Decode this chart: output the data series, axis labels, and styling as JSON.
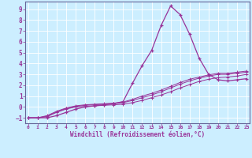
{
  "xlabel": "Windchill (Refroidissement éolien,°C)",
  "background_color": "#cceeff",
  "line_color": "#993399",
  "spine_color": "#666699",
  "x_ticks": [
    0,
    1,
    2,
    3,
    4,
    5,
    6,
    7,
    8,
    9,
    10,
    11,
    12,
    13,
    14,
    15,
    16,
    17,
    18,
    19,
    20,
    21,
    22,
    23
  ],
  "y_ticks": [
    -1,
    0,
    1,
    2,
    3,
    4,
    5,
    6,
    7,
    8,
    9
  ],
  "ylim": [
    -1.5,
    9.7
  ],
  "xlim": [
    -0.3,
    23.3
  ],
  "series1_x": [
    0,
    1,
    2,
    3,
    4,
    5,
    6,
    7,
    8,
    9,
    10,
    11,
    12,
    13,
    14,
    15,
    16,
    17,
    18,
    19,
    20,
    21,
    22,
    23
  ],
  "series1_y": [
    -1,
    -1,
    -1,
    -0.8,
    -0.5,
    -0.2,
    0,
    0.1,
    0.2,
    0.3,
    0.5,
    2.2,
    3.8,
    5.2,
    7.5,
    9.3,
    8.5,
    6.7,
    4.5,
    3.0,
    2.5,
    2.4,
    2.5,
    2.6
  ],
  "series2_x": [
    0,
    1,
    2,
    3,
    4,
    5,
    6,
    7,
    8,
    9,
    10,
    11,
    12,
    13,
    14,
    15,
    16,
    17,
    18,
    19,
    20,
    21,
    22,
    23
  ],
  "series2_y": [
    -1,
    -1,
    -0.9,
    -0.5,
    -0.2,
    0,
    0.05,
    0.1,
    0.15,
    0.2,
    0.25,
    0.4,
    0.6,
    0.85,
    1.1,
    1.4,
    1.75,
    2.05,
    2.35,
    2.55,
    2.7,
    2.75,
    2.85,
    3.0
  ],
  "series3_x": [
    0,
    1,
    2,
    3,
    4,
    5,
    6,
    7,
    8,
    9,
    10,
    11,
    12,
    13,
    14,
    15,
    16,
    17,
    18,
    19,
    20,
    21,
    22,
    23
  ],
  "series3_y": [
    -1,
    -1,
    -0.85,
    -0.45,
    -0.15,
    0.05,
    0.15,
    0.2,
    0.25,
    0.3,
    0.4,
    0.6,
    0.85,
    1.1,
    1.4,
    1.75,
    2.1,
    2.4,
    2.65,
    2.85,
    3.0,
    3.0,
    3.1,
    3.2
  ],
  "series4_x": [
    0,
    1,
    2,
    3,
    4,
    5,
    6,
    7,
    8,
    9,
    10,
    11,
    12,
    13,
    14,
    15,
    16,
    17,
    18,
    19,
    20,
    21,
    22,
    23
  ],
  "series4_y": [
    -1,
    -1,
    -0.8,
    -0.4,
    -0.1,
    0.1,
    0.2,
    0.25,
    0.3,
    0.35,
    0.45,
    0.7,
    1.0,
    1.25,
    1.55,
    1.9,
    2.25,
    2.55,
    2.75,
    2.95,
    3.1,
    3.1,
    3.2,
    3.3
  ]
}
